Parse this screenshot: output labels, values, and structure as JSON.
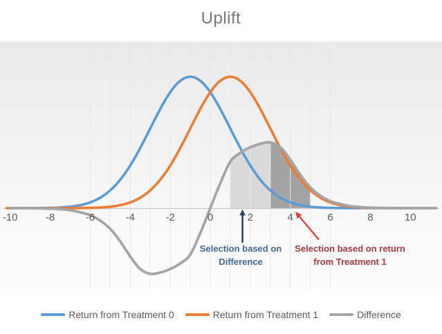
{
  "title": "Uplift",
  "chart_data": {
    "type": "line",
    "title": "Uplift",
    "x_axis": {
      "tick_labels": [
        "-10",
        "-8",
        "-6",
        "-4",
        "-2",
        "0",
        "2",
        "4",
        "6",
        "8",
        "10"
      ],
      "tick_values": [
        -10,
        -8,
        -6,
        -4,
        -2,
        0,
        2,
        4,
        6,
        8,
        10
      ],
      "gridline_values": [
        -6,
        -5,
        -4,
        -3,
        -2,
        -1,
        0,
        1,
        2,
        3,
        4,
        5,
        6
      ],
      "range": [
        -10.2,
        11.3
      ],
      "grid": true
    },
    "y_axis": {
      "visible_labels": false
    },
    "series": [
      {
        "name": "Return from Treatment 0",
        "color": "#5B9BD5",
        "shape": "gaussian",
        "mean": -1,
        "sd": 2,
        "peak": 1
      },
      {
        "name": "Return from Treatment 1",
        "color": "#ED7D31",
        "shape": "gaussian",
        "mean": 1,
        "sd": 2,
        "peak": 1
      },
      {
        "name": "Difference",
        "color": "#A5A5A5",
        "shape": "spline",
        "antisymmetric": true,
        "samples": [
          [
            0,
            0
          ],
          [
            0.5,
            0.19
          ],
          [
            1,
            0.353
          ],
          [
            1.5,
            0.421
          ],
          [
            2,
            0.463
          ],
          [
            2.5,
            0.49
          ],
          [
            3,
            0.5
          ],
          [
            3.5,
            0.463
          ],
          [
            4,
            0.368
          ],
          [
            4.5,
            0.253
          ],
          [
            5,
            0.158
          ],
          [
            5.5,
            0.095
          ],
          [
            6,
            0.053
          ],
          [
            6.5,
            0.032
          ],
          [
            7,
            0.016
          ],
          [
            7.5,
            0.008
          ],
          [
            8,
            0.004
          ],
          [
            9,
            0.001
          ],
          [
            10,
            0
          ],
          [
            11.4,
            0
          ]
        ]
      }
    ],
    "shaded_regions": [
      {
        "from": 1,
        "to": 3,
        "color": "#D9D9D9"
      },
      {
        "from": 3,
        "to": 5,
        "color": "#A3A3A3"
      }
    ],
    "annotations": [
      {
        "lines": [
          "Selection based on",
          "Difference"
        ],
        "color": "#44679B",
        "arrow": {
          "kind": "vertical-up",
          "color": "#2F4562",
          "x": 1.61
        }
      },
      {
        "lines": [
          "Selection based on return",
          "from Treatment 1"
        ],
        "color": "#A5393C",
        "arrow": {
          "kind": "diagonal-up-left",
          "color": "#E2413C",
          "x": 4.25
        }
      }
    ],
    "legend": {
      "position": "bottom",
      "entries": [
        "Return from Treatment 0",
        "Return from Treatment 1",
        "Difference"
      ]
    }
  }
}
